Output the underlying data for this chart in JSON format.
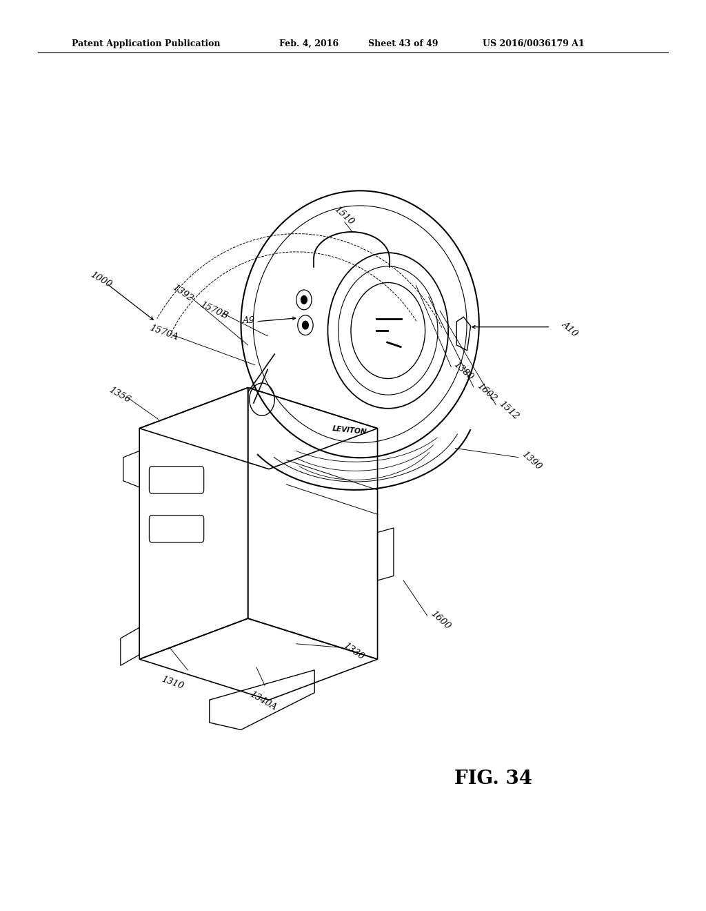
{
  "bg_color": "#ffffff",
  "fig_width": 10.24,
  "fig_height": 13.2,
  "dpi": 100,
  "header_text": "Patent Application Publication",
  "header_date": "Feb. 4, 2016",
  "header_sheet": "Sheet 43 of 49",
  "header_patent": "US 2016/0036179 A1",
  "fig_label": "FIG. 34",
  "lfs": 9.5
}
